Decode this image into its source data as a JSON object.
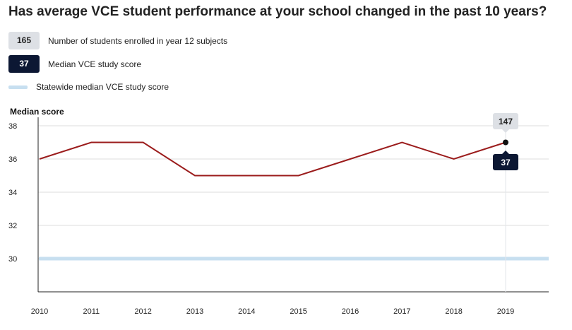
{
  "title": "Has average VCE student performance at your school changed in the past 10 years?",
  "legend": {
    "students": {
      "value": "165",
      "label": "Number of students enrolled in year 12 subjects"
    },
    "median": {
      "value": "37",
      "label": "Median VCE study score"
    },
    "statewide": {
      "label": "Statewide median VCE study score"
    }
  },
  "colors": {
    "line": "#9b1c1c",
    "statewide": "#c7dff0",
    "badge_dark": "#0c1733",
    "badge_light": "#dde0e5",
    "grid": "#dcdcdc"
  },
  "chart_data": {
    "type": "line",
    "ylabel": "Median score",
    "xlabel": "",
    "x": [
      "2010",
      "2011",
      "2012",
      "2013",
      "2014",
      "2015",
      "2016",
      "2017",
      "2018",
      "2019"
    ],
    "series": [
      {
        "name": "Median VCE study score",
        "values": [
          36,
          37,
          37,
          35,
          35,
          35,
          36,
          37,
          36,
          37
        ]
      }
    ],
    "statewide_median": 30,
    "yticks": [
      30,
      32,
      34,
      36,
      38
    ],
    "ylim": [
      28,
      38
    ],
    "grid": true,
    "highlight": {
      "x": "2019",
      "students": "147",
      "score": "37"
    }
  }
}
